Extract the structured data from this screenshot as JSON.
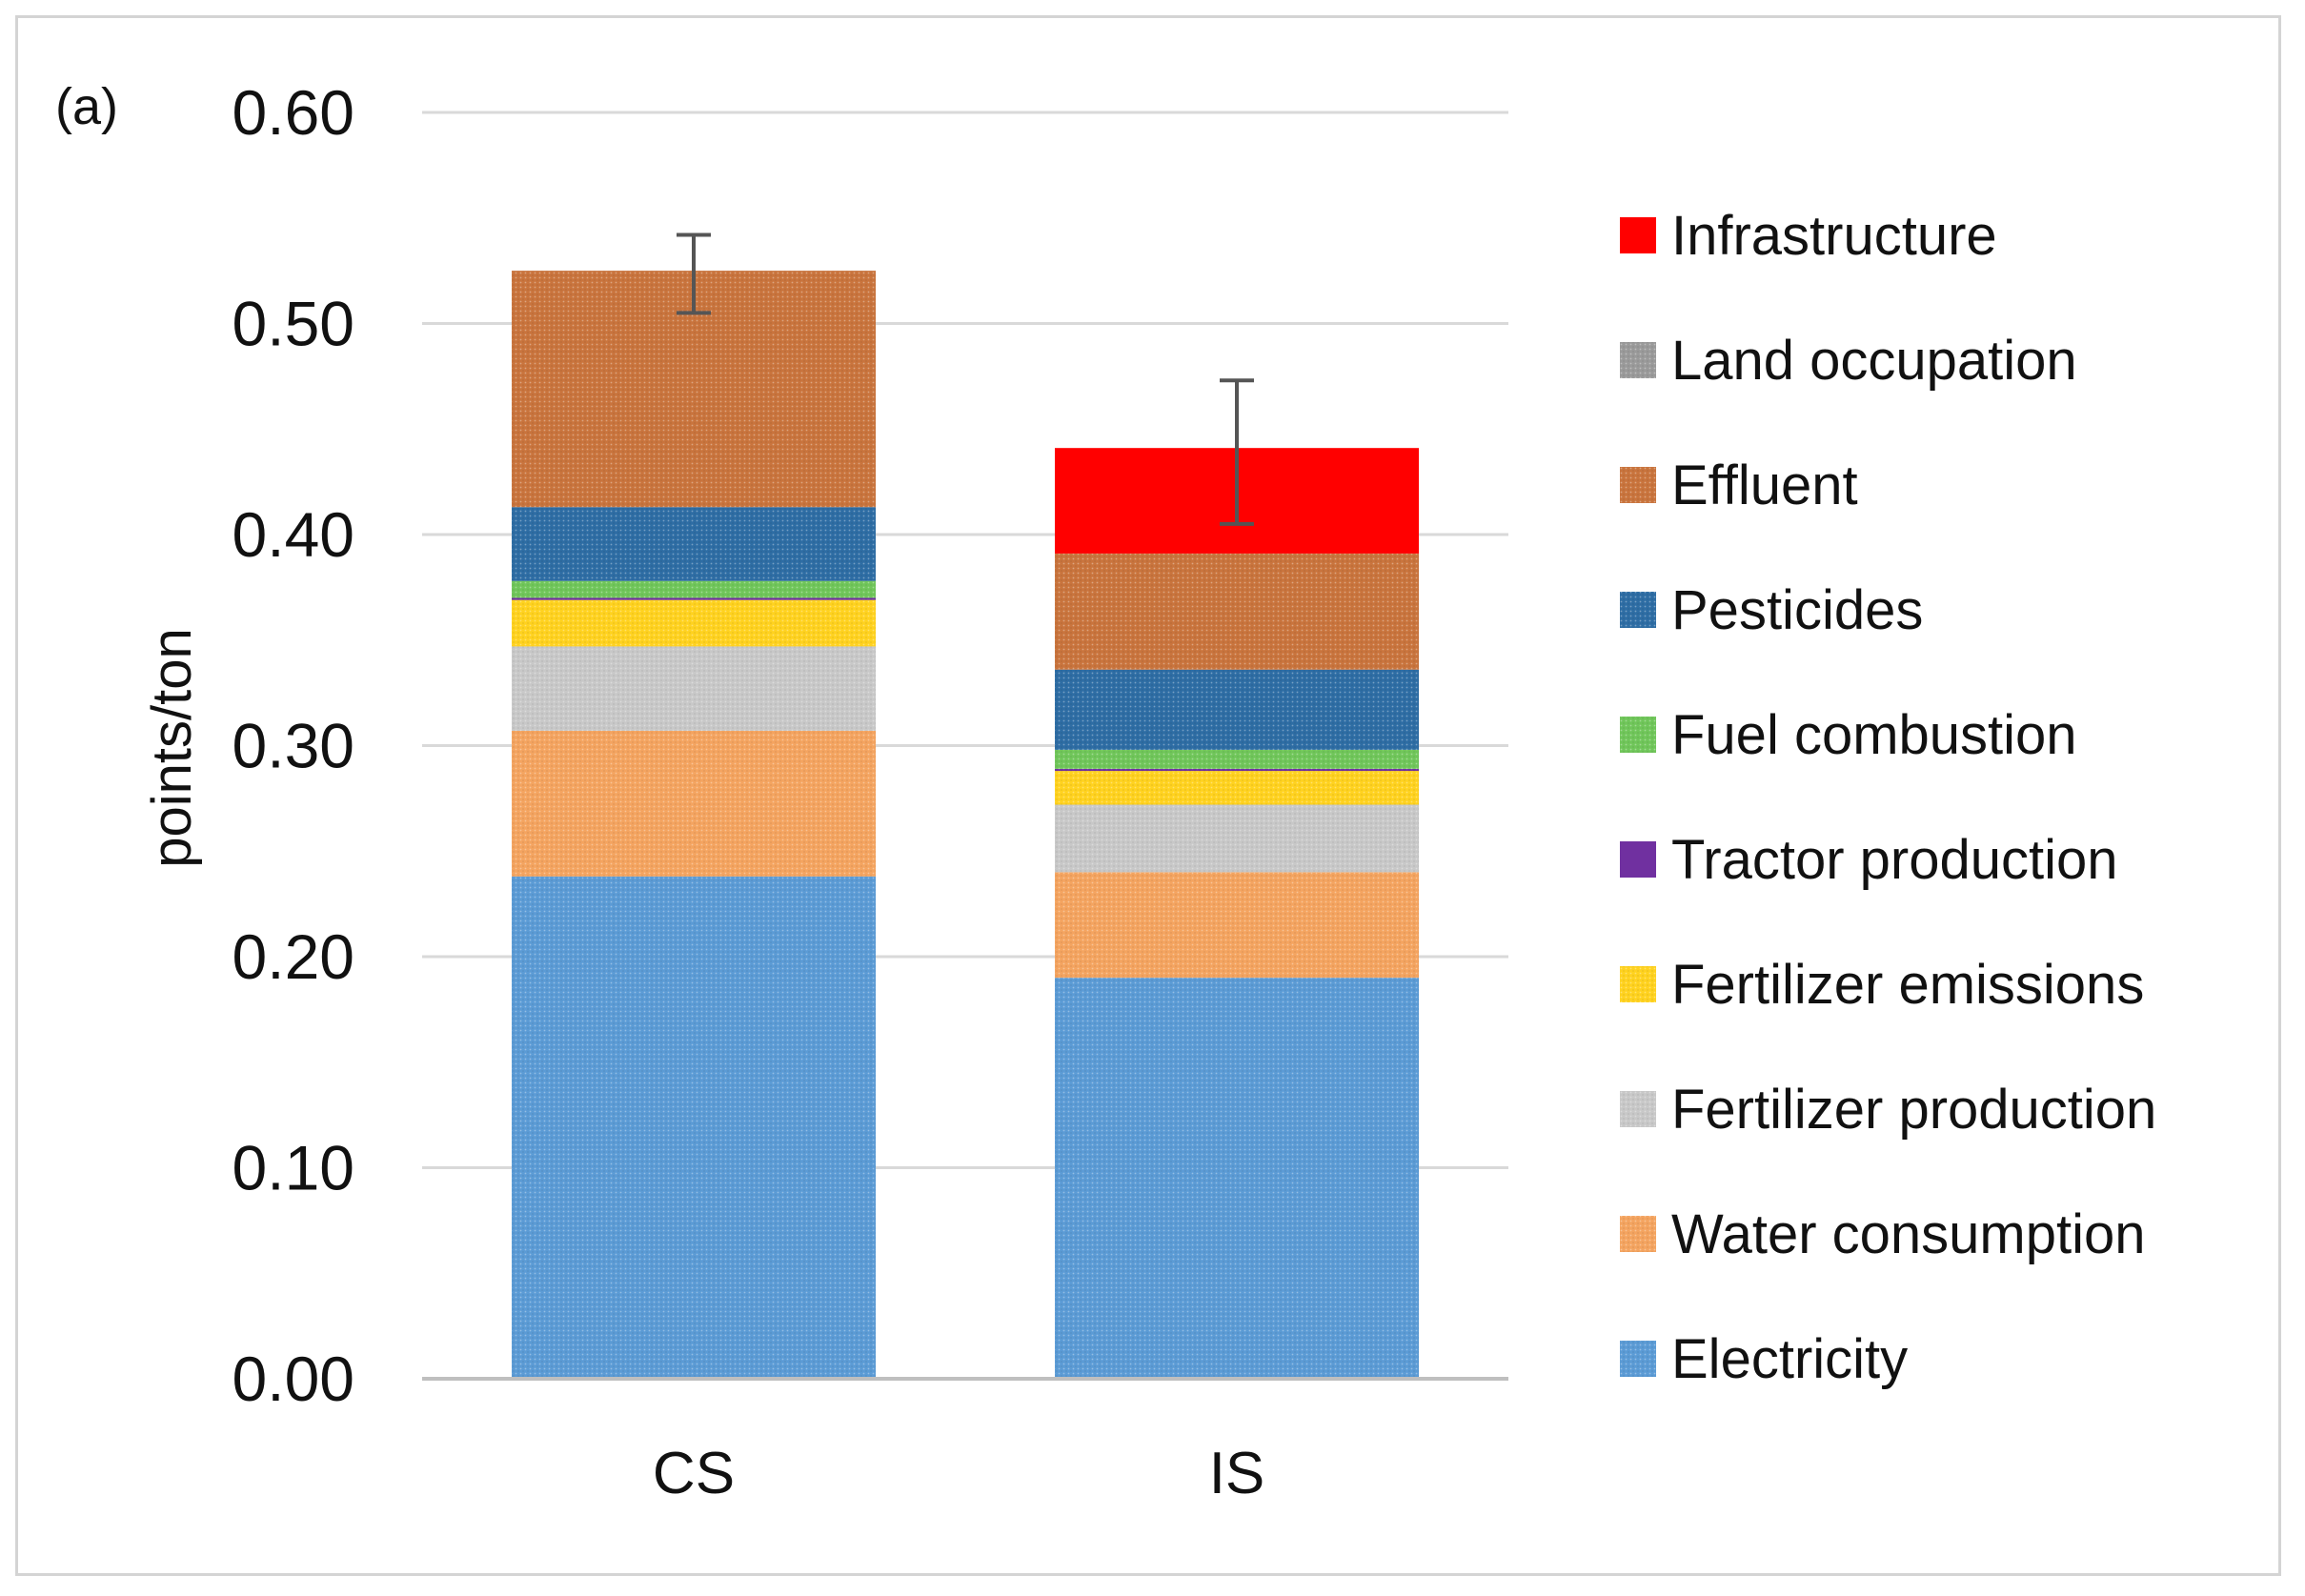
{
  "chart_data": {
    "type": "bar",
    "stacked": true,
    "panel_label": "(a)",
    "title": "",
    "xlabel": "",
    "ylabel": "points/ton",
    "ylim": [
      0,
      0.6
    ],
    "yticks": [
      0,
      0.1,
      0.2,
      0.3,
      0.4,
      0.5,
      0.6
    ],
    "ytick_labels": [
      "0.00",
      "0.10",
      "0.20",
      "0.30",
      "0.40",
      "0.50",
      "0.60"
    ],
    "grid": true,
    "legend_position": "right",
    "categories": [
      "CS",
      "IS"
    ],
    "series": [
      {
        "name": "Electricity",
        "color": "#5b9bd5",
        "values": [
          0.238,
          0.19
        ]
      },
      {
        "name": "Water consumption",
        "color": "#f4a460",
        "values": [
          0.069,
          0.05
        ]
      },
      {
        "name": "Fertilizer production",
        "color": "#c8c8c8",
        "values": [
          0.04,
          0.032
        ]
      },
      {
        "name": "Fertilizer emissions",
        "color": "#ffd21f",
        "values": [
          0.022,
          0.016
        ]
      },
      {
        "name": "Tractor production",
        "color": "#7030a0",
        "values": [
          0.001,
          0.001
        ]
      },
      {
        "name": "Fuel combustion",
        "color": "#70c65a",
        "values": [
          0.008,
          0.009
        ]
      },
      {
        "name": "Pesticides",
        "color": "#2e6da4",
        "values": [
          0.035,
          0.038
        ]
      },
      {
        "name": "Effluent",
        "color": "#c9743d",
        "values": [
          0.112,
          0.055
        ]
      },
      {
        "name": "Land occupation",
        "color": "#9a9a9a",
        "values": [
          0.0,
          0.0
        ]
      },
      {
        "name": "Infrastructure",
        "color": "#ff0000",
        "values": [
          0.0,
          0.05
        ]
      }
    ],
    "error_bars": [
      {
        "category": "CS",
        "low": 0.505,
        "high": 0.542
      },
      {
        "category": "IS",
        "low": 0.405,
        "high": 0.473
      }
    ],
    "legend_order": [
      "Infrastructure",
      "Land occupation",
      "Effluent",
      "Pesticides",
      "Fuel combustion",
      "Tractor production",
      "Fertilizer emissions",
      "Fertilizer production",
      "Water consumption",
      "Electricity"
    ]
  }
}
